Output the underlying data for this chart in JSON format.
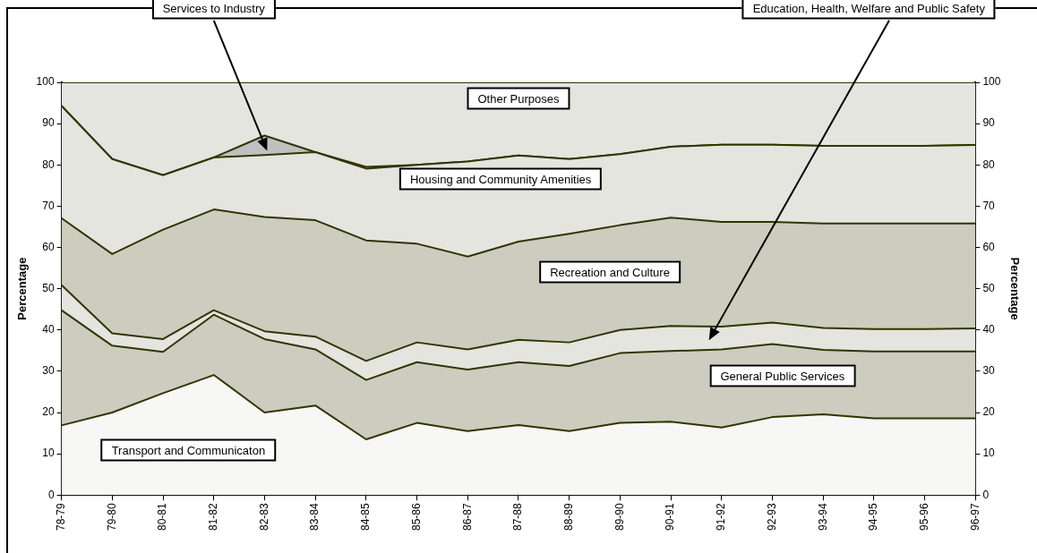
{
  "chart_data": {
    "type": "area",
    "stacked": true,
    "legend": false,
    "marker": "none",
    "categories": [
      "78-79",
      "79-80",
      "80-81",
      "81-82",
      "82-83",
      "83-84",
      "84-85",
      "85-86",
      "86-87",
      "87-88",
      "88-89",
      "89-90",
      "90-91",
      "91-92",
      "92-93",
      "93-94",
      "94-95",
      "95-96",
      "96-97"
    ],
    "ylabel": "Percentage",
    "y2label": "Percentage",
    "ylim": [
      0,
      100
    ],
    "yticks": [
      0,
      10,
      20,
      30,
      40,
      50,
      60,
      70,
      80,
      90,
      100
    ],
    "y2lim": [
      0,
      100
    ],
    "y2ticks": [
      0,
      10,
      20,
      30,
      40,
      50,
      60,
      70,
      80,
      90,
      100
    ],
    "series": [
      {
        "name": "Transport and Communicaton",
        "color": "#f7f7f5",
        "values": [
          16.9,
          20.0,
          24.7,
          29.1,
          20.0,
          21.7,
          13.5,
          17.5,
          15.5,
          17.0,
          15.5,
          17.5,
          17.8,
          16.4,
          18.9,
          19.6,
          18.6,
          18.6,
          18.6
        ]
      },
      {
        "name": "General Public Services",
        "color": "#cccdbf",
        "values": [
          27.9,
          16.2,
          10.0,
          14.6,
          17.8,
          13.6,
          14.4,
          14.7,
          14.9,
          15.2,
          15.8,
          16.9,
          17.1,
          18.9,
          17.7,
          15.6,
          16.2,
          16.2,
          16.2
        ]
      },
      {
        "name": "Education, Health, Welfare and Public Safety",
        "color": "#e4e5df",
        "values": [
          6.1,
          3.0,
          3.1,
          1.1,
          1.9,
          3.1,
          4.6,
          4.8,
          4.9,
          5.4,
          5.7,
          5.6,
          6.1,
          5.5,
          5.2,
          5.3,
          5.4,
          5.4,
          5.6
        ]
      },
      {
        "name": "Recreation and Culture",
        "color": "#cccdbf",
        "values": [
          16.2,
          19.2,
          26.5,
          24.4,
          27.7,
          28.2,
          29.2,
          23.9,
          22.5,
          23.8,
          26.3,
          25.4,
          26.2,
          25.4,
          24.4,
          25.3,
          25.6,
          25.6,
          25.4
        ]
      },
      {
        "name": "Housing and Community Amenities",
        "color": "#e4e5df",
        "values": [
          27.2,
          23.0,
          13.2,
          12.6,
          15.0,
          16.5,
          17.4,
          19.1,
          23.0,
          20.9,
          18.1,
          17.2,
          17.2,
          18.7,
          18.7,
          18.8,
          18.8,
          18.8,
          19.0
        ]
      },
      {
        "name": "Services to Industry",
        "color": "#c0c0c0",
        "values": [
          0,
          0,
          0,
          0,
          4.7,
          0,
          0.4,
          0,
          0,
          0,
          0,
          0,
          0,
          0,
          0,
          0,
          0,
          0,
          0
        ]
      },
      {
        "name": "Other Purposes",
        "color": "#e4e5df",
        "values": [
          5.7,
          18.6,
          22.5,
          18.2,
          12.9,
          16.9,
          20.5,
          20.0,
          19.2,
          17.7,
          18.6,
          17.4,
          15.6,
          15.1,
          15.1,
          15.4,
          15.4,
          15.4,
          15.2
        ]
      }
    ]
  }
}
